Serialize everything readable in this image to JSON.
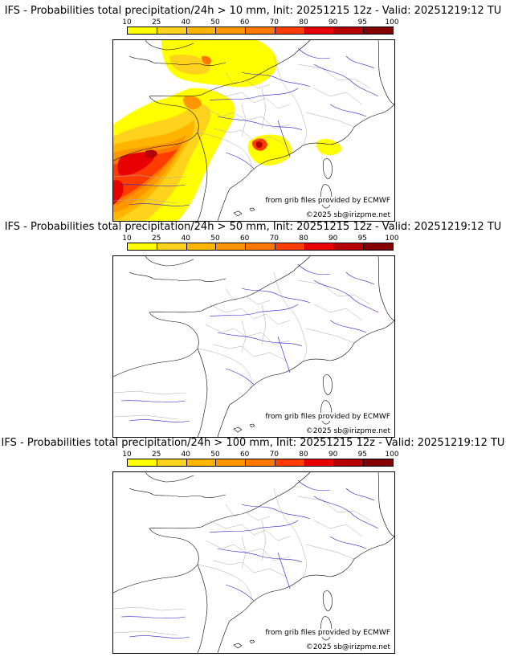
{
  "colorbar": {
    "ticks": [
      "10",
      "25",
      "40",
      "50",
      "60",
      "70",
      "80",
      "90",
      "95",
      "100"
    ],
    "colors": [
      "#ffff00",
      "#ffd21e",
      "#ffb400",
      "#ff9600",
      "#ff7800",
      "#ff3c00",
      "#e60000",
      "#b40000",
      "#820000"
    ]
  },
  "credits": {
    "source": "from grib files provided by ECMWF",
    "copyright": "©2025 sb@irizpme.net"
  },
  "panels": [
    {
      "title": "IFS - Probabilities total precipitation/24h > 10 mm, Init: 20251215 12z - Valid: 20251219:12 TU"
    },
    {
      "title": "IFS - Probabilities total precipitation/24h > 50 mm, Init: 20251215 12z - Valid: 20251219:12 TU"
    },
    {
      "title": "IFS - Probabilities total precipitation/24h > 100 mm, Init: 20251215 12z - Valid: 20251219:12 TU"
    }
  ]
}
